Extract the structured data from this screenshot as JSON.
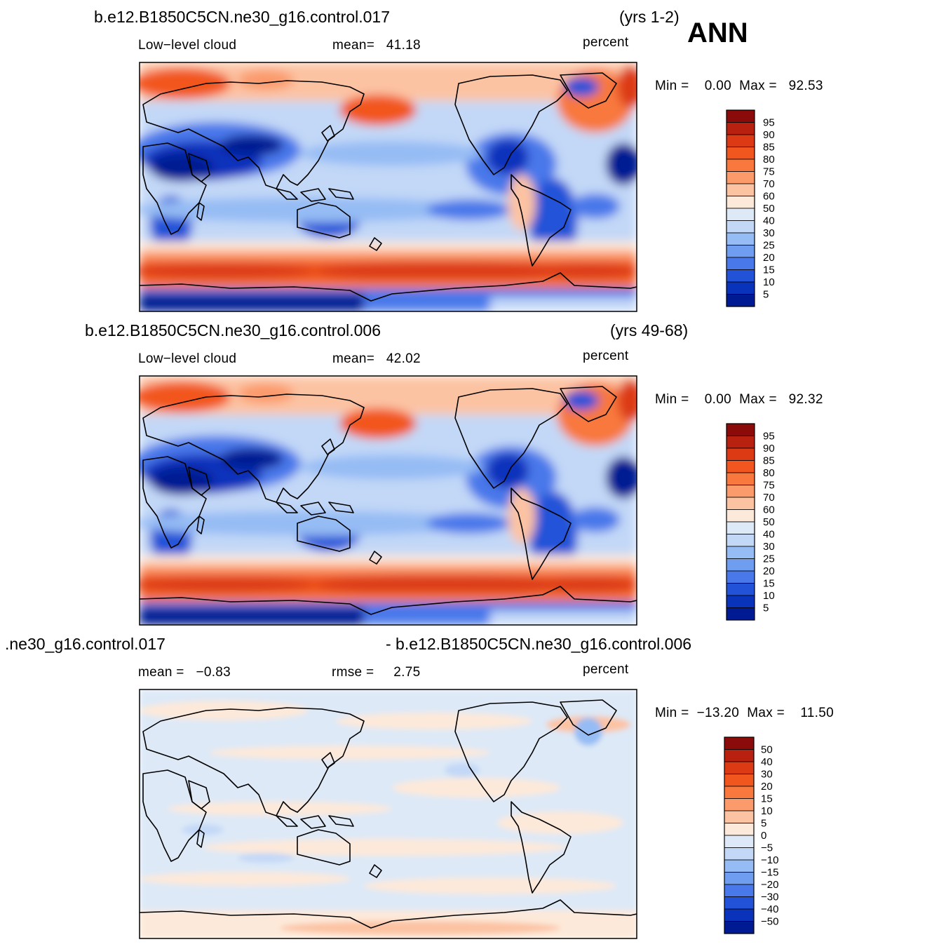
{
  "season": "ANN",
  "panels": [
    {
      "case": "b.e12.B1850C5CN.ne30_g16.control.017",
      "years": "(yrs 1-2)",
      "field": "Low−level cloud",
      "stat1": "mean=   41.18",
      "stat2": "",
      "units": "percent",
      "minmax": "Min =    0.00  Max =   92.53",
      "colorbar": {
        "labels": [
          "95",
          "90",
          "85",
          "80",
          "75",
          "70",
          "60",
          "50",
          "40",
          "30",
          "25",
          "20",
          "15",
          "10",
          "5"
        ],
        "colors": [
          "#8b0a0a",
          "#b8200f",
          "#dc3a14",
          "#f2561f",
          "#f8783e",
          "#fb9a6a",
          "#fcc3a3",
          "#fde9d9",
          "#dde9f7",
          "#c3d8f7",
          "#95bcf4",
          "#6f9ef0",
          "#4978ea",
          "#2252d8",
          "#0a33bb",
          "#001a93"
        ]
      }
    },
    {
      "case": "b.e12.B1850C5CN.ne30_g16.control.006",
      "years": "(yrs 49-68)",
      "field": "Low−level cloud",
      "stat1": "mean=   42.02",
      "stat2": "",
      "units": "percent",
      "minmax": "Min =    0.00  Max =   92.32",
      "colorbar": {
        "labels": [
          "95",
          "90",
          "85",
          "80",
          "75",
          "70",
          "60",
          "50",
          "40",
          "30",
          "25",
          "20",
          "15",
          "10",
          "5"
        ],
        "colors": [
          "#8b0a0a",
          "#b8200f",
          "#dc3a14",
          "#f2561f",
          "#f8783e",
          "#fb9a6a",
          "#fcc3a3",
          "#fde9d9",
          "#dde9f7",
          "#c3d8f7",
          "#95bcf4",
          "#6f9ef0",
          "#4978ea",
          "#2252d8",
          "#0a33bb",
          "#001a93"
        ]
      }
    },
    {
      "case": ".ne30_g16.control.017",
      "years": "- b.e12.B1850C5CN.ne30_g16.control.006",
      "field": "",
      "stat1": "mean =   −0.83",
      "stat2": "rmse =     2.75",
      "units": "percent",
      "minmax": "Min =  −13.20  Max =    11.50",
      "colorbar": {
        "labels": [
          "50",
          "40",
          "30",
          "20",
          "15",
          "10",
          "5",
          "0",
          "−5",
          "−10",
          "−15",
          "−20",
          "−30",
          "−40",
          "−50"
        ],
        "colors": [
          "#8b0a0a",
          "#b8200f",
          "#dc3a14",
          "#f2561f",
          "#f8783e",
          "#fb9a6a",
          "#fcc3a3",
          "#fde9d9",
          "#dde9f7",
          "#c3d8f7",
          "#95bcf4",
          "#6f9ef0",
          "#4978ea",
          "#2252d8",
          "#0a33bb",
          "#001a93"
        ]
      }
    }
  ]
}
